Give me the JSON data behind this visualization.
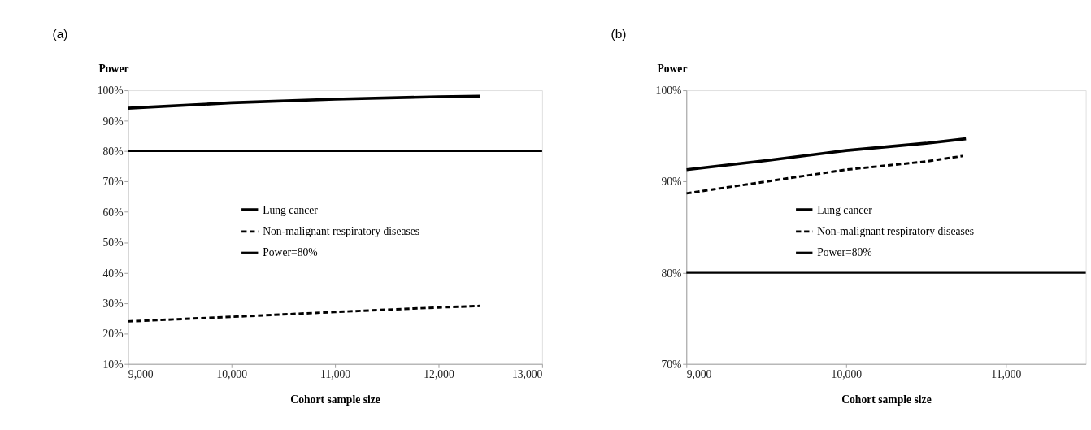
{
  "chart_data": [
    {
      "type": "line",
      "title": "(a)",
      "xlabel": "Cohort sample size",
      "ylabel": "Power",
      "series": [
        {
          "name": "Lung cancer",
          "color": "#000000",
          "line_style": "solid",
          "x": [
            9000,
            10000,
            11000,
            12000,
            12400
          ],
          "values": [
            94.1,
            95.9,
            97.1,
            97.9,
            98.1
          ]
        },
        {
          "name": "Non-malignant respiratory diseases",
          "color": "#000000",
          "line_style": "dashed",
          "x": [
            9000,
            10000,
            11000,
            12000,
            12400
          ],
          "values": [
            24.0,
            25.5,
            27.1,
            28.6,
            29.1
          ]
        }
      ],
      "ref_lines": [
        {
          "axis": "y",
          "value": 80,
          "label": "Power=80%",
          "color": "#000000",
          "line_style": "solid"
        }
      ],
      "xlim": [
        9000,
        13000
      ],
      "xticks": [
        {
          "value": 9000,
          "label": "9,000"
        },
        {
          "value": 10000,
          "label": "10,000"
        },
        {
          "value": 11000,
          "label": "11,000"
        },
        {
          "value": 12000,
          "label": "12,000"
        },
        {
          "value": 13000,
          "label": "13,000"
        }
      ],
      "ylim": [
        10,
        100
      ],
      "yticks": [
        {
          "value": 10,
          "label": "10%"
        },
        {
          "value": 20,
          "label": "20%"
        },
        {
          "value": 30,
          "label": "30%"
        },
        {
          "value": 40,
          "label": "40%"
        },
        {
          "value": 50,
          "label": "50%"
        },
        {
          "value": 60,
          "label": "60%"
        },
        {
          "value": 70,
          "label": "70%"
        },
        {
          "value": 80,
          "label": "80%"
        },
        {
          "value": 90,
          "label": "90%"
        },
        {
          "value": 100,
          "label": "100%"
        }
      ],
      "legend": "center",
      "grid": false,
      "marker": "none"
    },
    {
      "type": "line",
      "title": "(b)",
      "xlabel": "Cohort sample size",
      "ylabel": "Power",
      "series": [
        {
          "name": "Lung cancer",
          "color": "#000000",
          "line_style": "solid",
          "x": [
            9000,
            9500,
            10000,
            10500,
            10750
          ],
          "values": [
            91.3,
            92.3,
            93.4,
            94.2,
            94.7
          ]
        },
        {
          "name": "Non-malignant respiratory diseases",
          "color": "#000000",
          "line_style": "dashed",
          "x": [
            9000,
            9500,
            10000,
            10500,
            10730
          ],
          "values": [
            88.7,
            90.0,
            91.3,
            92.2,
            92.8
          ]
        }
      ],
      "ref_lines": [
        {
          "axis": "y",
          "value": 80,
          "label": "Power=80%",
          "color": "#000000",
          "line_style": "solid"
        }
      ],
      "xlim": [
        9000,
        11500
      ],
      "xticks": [
        {
          "value": 9000,
          "label": "9,000"
        },
        {
          "value": 10000,
          "label": "10,000"
        },
        {
          "value": 11000,
          "label": "11,000"
        }
      ],
      "ylim": [
        70,
        100
      ],
      "yticks": [
        {
          "value": 70,
          "label": "70%"
        },
        {
          "value": 80,
          "label": "80%"
        },
        {
          "value": 90,
          "label": "90%"
        },
        {
          "value": 100,
          "label": "100%"
        }
      ],
      "legend": "center",
      "grid": false,
      "marker": "none"
    }
  ]
}
